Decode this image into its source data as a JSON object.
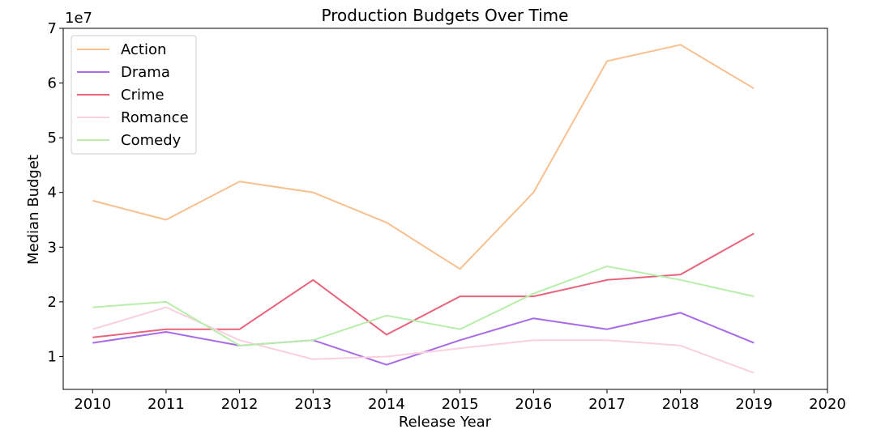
{
  "chart_data": {
    "type": "line",
    "title": "Production Budgets Over Time",
    "xlabel": "Release Year",
    "ylabel": "Median Budget",
    "y_offset_text": "1e7",
    "xlim": [
      2009.6,
      2020
    ],
    "ylim": [
      0.4,
      7
    ],
    "x_ticks": [
      2010,
      2011,
      2012,
      2013,
      2014,
      2015,
      2016,
      2017,
      2018,
      2019,
      2020
    ],
    "y_ticks": [
      1,
      2,
      3,
      4,
      5,
      6,
      7
    ],
    "grid": false,
    "legend_position": "top-left",
    "x": [
      2010,
      2011,
      2012,
      2013,
      2014,
      2015,
      2016,
      2017,
      2018,
      2019
    ],
    "series": [
      {
        "name": "Action",
        "color": "#f8c08f",
        "values": [
          3.85,
          3.5,
          4.2,
          4.0,
          3.45,
          2.6,
          4.0,
          6.4,
          6.7,
          5.9
        ]
      },
      {
        "name": "Drama",
        "color": "#a96ae8",
        "values": [
          1.25,
          1.45,
          1.2,
          1.3,
          0.85,
          1.3,
          1.7,
          1.5,
          1.8,
          1.25
        ]
      },
      {
        "name": "Crime",
        "color": "#e8637c",
        "values": [
          1.35,
          1.5,
          1.5,
          2.4,
          1.4,
          2.1,
          2.1,
          2.4,
          2.5,
          3.25
        ]
      },
      {
        "name": "Romance",
        "color": "#fbd0dd",
        "values": [
          1.5,
          1.9,
          1.3,
          0.95,
          1.0,
          1.15,
          1.3,
          1.3,
          1.2,
          0.7
        ]
      },
      {
        "name": "Comedy",
        "color": "#b6eeaa",
        "values": [
          1.9,
          2.0,
          1.2,
          1.3,
          1.75,
          1.5,
          2.15,
          2.65,
          2.4,
          2.1
        ]
      }
    ]
  }
}
